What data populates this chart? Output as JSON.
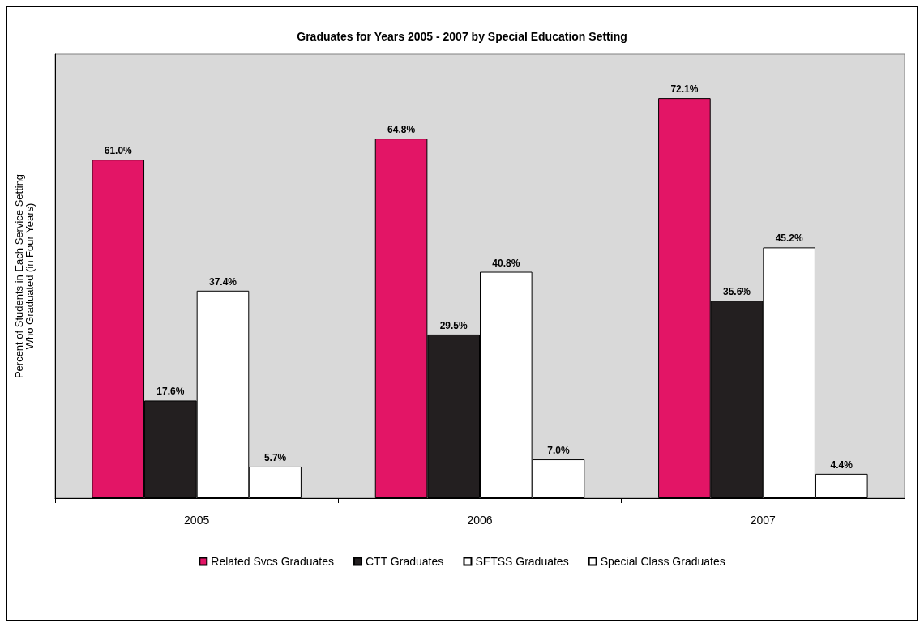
{
  "chart_data": {
    "type": "bar",
    "title": "Graduates for Years 2005 - 2007 by Special Education Setting",
    "ylabel": "Percent of Students in Each Service Setting\nWho Graduated (in Four Years)",
    "categories": [
      "2005",
      "2006",
      "2007"
    ],
    "series": [
      {
        "name": "Related Svcs Graduates",
        "color": "#e31566",
        "values": [
          61.0,
          64.8,
          72.1
        ],
        "value_labels": [
          "61.0%",
          "64.8%",
          "72.1%"
        ]
      },
      {
        "name": "CTT Graduates",
        "color": "#231f20",
        "values": [
          17.6,
          29.5,
          35.6
        ],
        "value_labels": [
          "17.6%",
          "29.5%",
          "35.6%"
        ]
      },
      {
        "name": "SETSS Graduates",
        "color": "#ffffff",
        "values": [
          37.4,
          40.8,
          45.2
        ],
        "value_labels": [
          "37.4%",
          "40.8%",
          "45.2%"
        ]
      },
      {
        "name": "Special Class Graduates",
        "color": "#ffffff",
        "values": [
          5.7,
          7.0,
          4.4
        ],
        "value_labels": [
          "5.7%",
          "7.0%",
          "4.4%"
        ]
      }
    ],
    "legend": "bottom",
    "grid": false
  }
}
